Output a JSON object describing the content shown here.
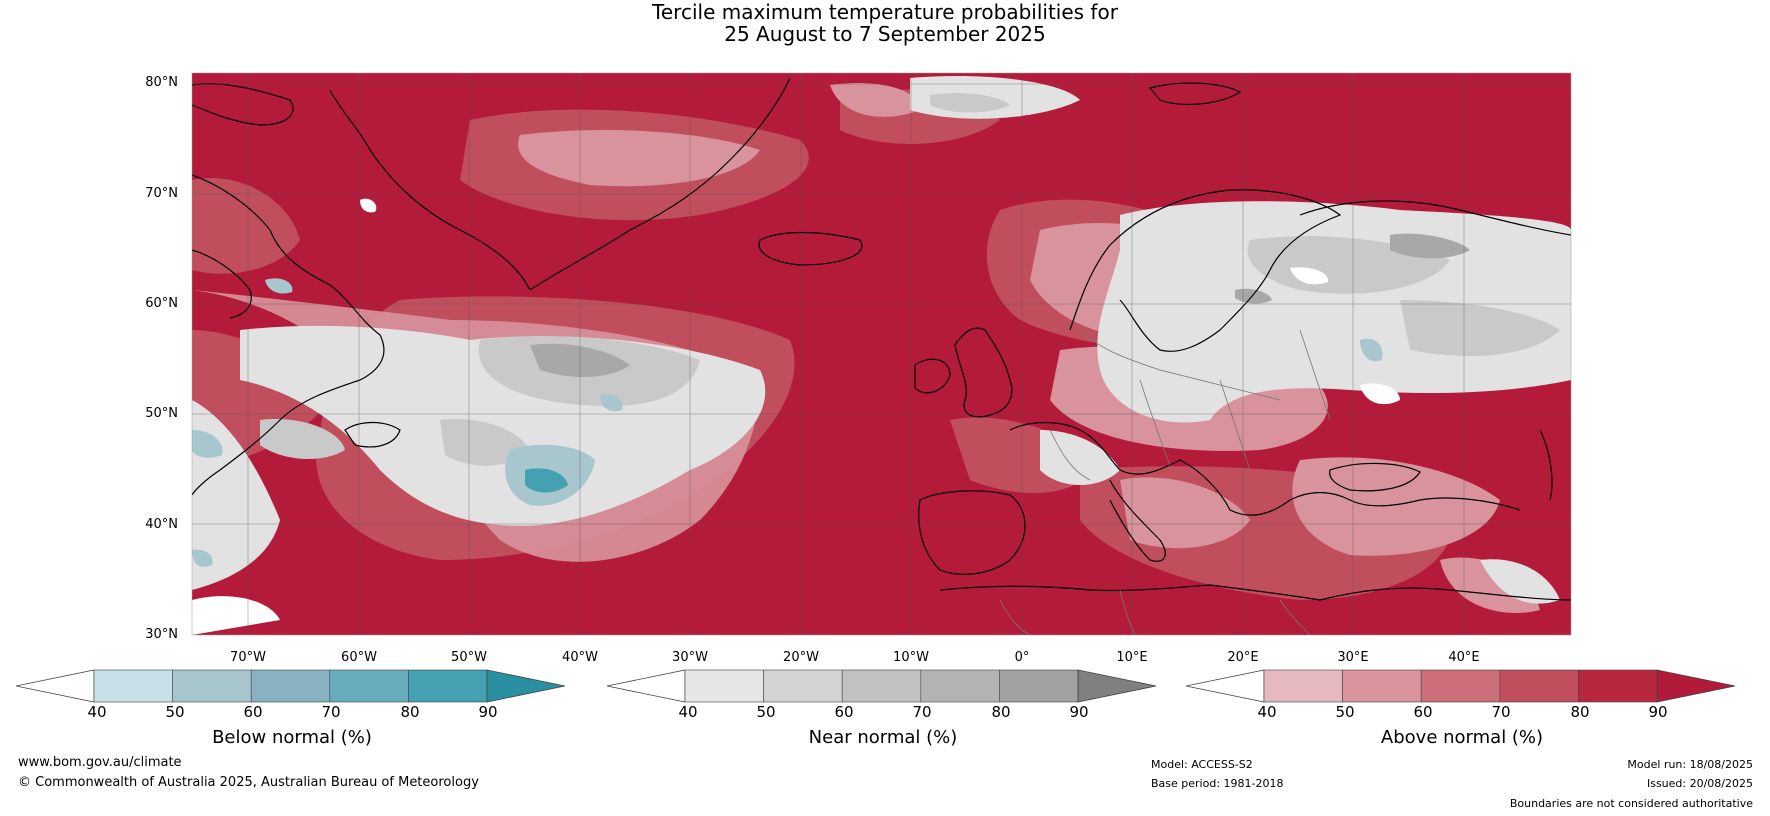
{
  "title_line1": "Tercile maximum temperature probabilities for",
  "title_line2": "25 August to 7 September 2025",
  "lat_labels": [
    "80°N",
    "70°N",
    "60°N",
    "50°N",
    "40°N",
    "30°N"
  ],
  "lon_labels": [
    "70°W",
    "60°W",
    "50°W",
    "40°W",
    "30°W",
    "20°W",
    "10°W",
    "0°",
    "10°E",
    "20°E",
    "30°E",
    "40°E"
  ],
  "colorbars": [
    {
      "title": "Below normal (%)",
      "ticks": [
        "40",
        "50",
        "60",
        "70",
        "80",
        "90"
      ],
      "colors": [
        "#ffffff",
        "#c8e1e8",
        "#a7c6ce",
        "#88b1c1",
        "#67acbc",
        "#45a1b2",
        "#2b8fa2"
      ]
    },
    {
      "title": "Near normal (%)",
      "ticks": [
        "40",
        "50",
        "60",
        "70",
        "80",
        "90"
      ],
      "colors": [
        "#ffffff",
        "#e6e6e6",
        "#d3d3d3",
        "#c1c1c1",
        "#b3b3b3",
        "#a1a1a1",
        "#808080"
      ]
    },
    {
      "title": "Above normal (%)",
      "ticks": [
        "40",
        "50",
        "60",
        "70",
        "80",
        "90"
      ],
      "colors": [
        "#ffffff",
        "#e6b8bf",
        "#d8939c",
        "#cc6f7b",
        "#c04e5d",
        "#b7283f",
        "#b21a3a"
      ]
    }
  ],
  "footer": {
    "url": "www.bom.gov.au/climate",
    "copyright": "© Commonwealth of Australia 2025, Australian Bureau of Meteorology",
    "model": "Model: ACCESS-S2",
    "base_period": "Base period: 1981-2018",
    "model_run": "Model run: 18/08/2025",
    "issued": "Issued: 20/08/2025",
    "disclaimer": "Boundaries are not considered authoritative"
  },
  "colors": {
    "red_dominant": "#b41a3a",
    "grid": "#555555",
    "coast": "#000000"
  }
}
